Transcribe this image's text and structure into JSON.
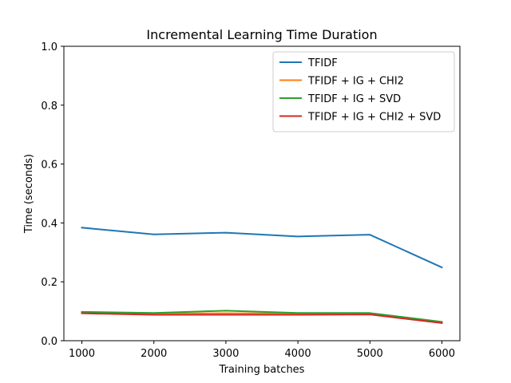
{
  "chart_data": {
    "type": "line",
    "title": "Incremental Learning Time Duration",
    "xlabel": "Training batches",
    "ylabel": "Time (seconds)",
    "x": [
      1000,
      2000,
      3000,
      4000,
      5000,
      6000
    ],
    "xlim": [
      750,
      6250
    ],
    "ylim": [
      0,
      1.0
    ],
    "xticks": [
      1000,
      2000,
      3000,
      4000,
      5000,
      6000
    ],
    "yticks": [
      0.0,
      0.2,
      0.4,
      0.6,
      0.8,
      1.0
    ],
    "ytick_labels": [
      "0.0",
      "0.2",
      "0.4",
      "0.6",
      "0.8",
      "1.0"
    ],
    "legend_position": "top-right",
    "grid": false,
    "series": [
      {
        "name": "TFIDF",
        "color": "#1f77b4",
        "values": [
          0.384,
          0.361,
          0.367,
          0.354,
          0.36,
          0.249
        ]
      },
      {
        "name": "TFIDF + IG + CHI2",
        "color": "#ff7f0e",
        "values": [
          0.095,
          0.092,
          0.093,
          0.092,
          0.092,
          0.062
        ]
      },
      {
        "name": "TFIDF + IG + SVD",
        "color": "#2ca02c",
        "values": [
          0.098,
          0.094,
          0.102,
          0.094,
          0.094,
          0.064
        ]
      },
      {
        "name": "TFIDF + IG + CHI2 + SVD",
        "color": "#d62728",
        "values": [
          0.093,
          0.088,
          0.088,
          0.088,
          0.089,
          0.06
        ]
      }
    ]
  }
}
